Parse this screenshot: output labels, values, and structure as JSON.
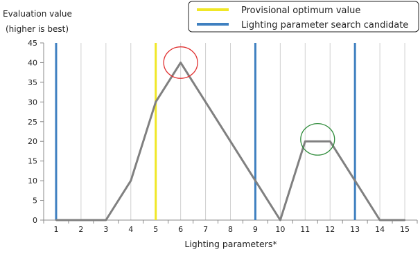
{
  "chart_data": {
    "type": "line",
    "ylabel_lines": [
      "Evaluation value",
      "(higher is best)"
    ],
    "xlabel": "Lighting parameters*",
    "x": [
      1,
      2,
      3,
      4,
      5,
      6,
      7,
      8,
      9,
      10,
      11,
      12,
      13,
      14,
      15
    ],
    "x_tick_labels": [
      "1",
      "2",
      "3",
      "4",
      "5",
      "6",
      "7",
      "8",
      "9",
      "10",
      "11",
      "12",
      "13",
      "14",
      "15"
    ],
    "y_tick_labels": [
      "0",
      "5",
      "10",
      "15",
      "20",
      "25",
      "30",
      "35",
      "40",
      "45"
    ],
    "ylim": [
      0,
      45
    ],
    "xlim": [
      0.5,
      15.5
    ],
    "grid": "vertical",
    "series": [
      {
        "values": [
          0,
          0,
          0,
          10,
          30,
          40,
          30,
          20,
          10,
          0,
          20,
          20,
          10,
          0,
          0
        ],
        "color": "#808080"
      }
    ],
    "reference_lines": [
      {
        "legend_key": "provisional",
        "x": 5,
        "color": "#f0e726"
      },
      {
        "legend_key": "candidate",
        "x": 1,
        "color": "#3f80c0"
      },
      {
        "legend_key": "candidate",
        "x": 9,
        "color": "#3f80c0"
      },
      {
        "legend_key": "candidate",
        "x": 13,
        "color": "#3f80c0"
      }
    ],
    "legend": {
      "position": "top-right",
      "provisional": {
        "label": "Provisional optimum value",
        "color": "#f0e726"
      },
      "candidate": {
        "label": "Lighting parameter search candidate",
        "color": "#3f80c0"
      }
    },
    "highlights": [
      {
        "center_x": 6,
        "center_y": 40,
        "color": "#e03030"
      },
      {
        "center_x": 11.5,
        "center_y": 20.5,
        "color": "#2e8b3a"
      }
    ]
  }
}
